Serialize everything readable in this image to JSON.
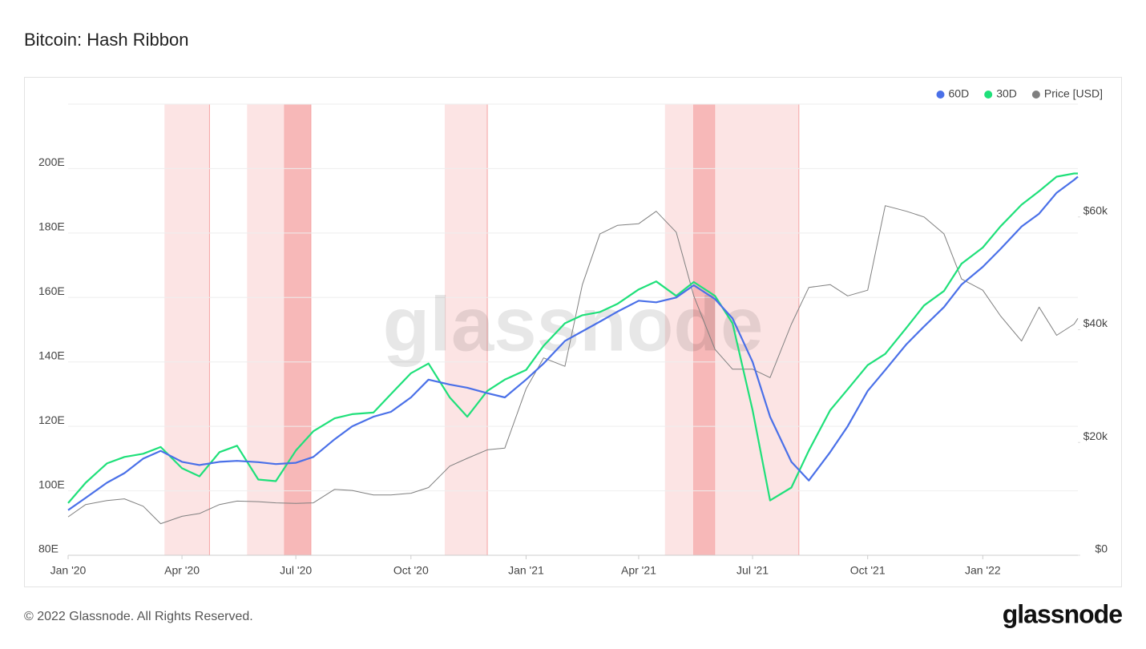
{
  "chart_data": {
    "type": "line",
    "title": "Bitcoin: Hash Ribbon",
    "watermark": "glassnode",
    "footer": "© 2022 Glassnode. All Rights Reserved.",
    "logo": "glassnode",
    "legend": "top-right",
    "grid": true,
    "xlim": [
      "2020-01-01",
      "2022-03-18"
    ],
    "xticks": [
      {
        "value": "2020-01-01",
        "label": "Jan '20"
      },
      {
        "value": "2020-04-01",
        "label": "Apr '20"
      },
      {
        "value": "2020-07-01",
        "label": "Jul '20"
      },
      {
        "value": "2020-10-01",
        "label": "Oct '20"
      },
      {
        "value": "2021-01-01",
        "label": "Jan '21"
      },
      {
        "value": "2021-04-01",
        "label": "Apr '21"
      },
      {
        "value": "2021-07-01",
        "label": "Jul '21"
      },
      {
        "value": "2021-10-01",
        "label": "Oct '21"
      },
      {
        "value": "2022-01-01",
        "label": "Jan '22"
      }
    ],
    "ylim": [
      80,
      220
    ],
    "yticks": [
      {
        "value": 80,
        "label": "80E"
      },
      {
        "value": 100,
        "label": "100E"
      },
      {
        "value": 120,
        "label": "120E"
      },
      {
        "value": 140,
        "label": "140E"
      },
      {
        "value": 160,
        "label": "160E"
      },
      {
        "value": 180,
        "label": "180E"
      },
      {
        "value": 200,
        "label": "200E"
      }
    ],
    "y2lim": [
      0,
      80000
    ],
    "y2ticks": [
      {
        "value": 0,
        "label": "$0"
      },
      {
        "value": 20000,
        "label": "$20k"
      },
      {
        "value": 40000,
        "label": "$40k"
      },
      {
        "value": 60000,
        "label": "$60k"
      }
    ],
    "bands": [
      {
        "start": "2020-03-18",
        "end": "2020-04-23",
        "color": "#fce4e4"
      },
      {
        "start": "2020-05-23",
        "end": "2020-06-22",
        "color": "#fce4e4"
      },
      {
        "start": "2020-06-22",
        "end": "2020-07-13",
        "color": "#f7b8b8"
      },
      {
        "start": "2020-10-28",
        "end": "2020-12-01",
        "color": "#fce4e4"
      },
      {
        "start": "2021-04-22",
        "end": "2021-05-15",
        "color": "#fce4e4"
      },
      {
        "start": "2021-05-15",
        "end": "2021-06-01",
        "color": "#f7b8b8"
      },
      {
        "start": "2021-06-01",
        "end": "2021-08-07",
        "color": "#fce4e4"
      }
    ],
    "x": [
      "2020-01-01",
      "2020-01-15",
      "2020-02-01",
      "2020-02-15",
      "2020-03-01",
      "2020-03-15",
      "2020-04-01",
      "2020-04-15",
      "2020-05-01",
      "2020-05-15",
      "2020-06-01",
      "2020-06-15",
      "2020-07-01",
      "2020-07-15",
      "2020-08-01",
      "2020-08-15",
      "2020-09-01",
      "2020-09-15",
      "2020-10-01",
      "2020-10-15",
      "2020-11-01",
      "2020-11-15",
      "2020-12-01",
      "2020-12-15",
      "2021-01-01",
      "2021-01-15",
      "2021-02-01",
      "2021-02-15",
      "2021-03-01",
      "2021-03-15",
      "2021-04-01",
      "2021-04-15",
      "2021-05-01",
      "2021-05-15",
      "2021-06-01",
      "2021-06-15",
      "2021-07-01",
      "2021-07-15",
      "2021-08-01",
      "2021-08-15",
      "2021-09-01",
      "2021-09-15",
      "2021-10-01",
      "2021-10-15",
      "2021-11-01",
      "2021-11-15",
      "2021-12-01",
      "2021-12-15",
      "2022-01-01",
      "2022-01-15",
      "2022-02-01",
      "2022-02-15",
      "2022-03-01",
      "2022-03-15",
      "2022-03-18"
    ],
    "series": [
      {
        "name": "Price [USD]",
        "color": "#7f7f7f",
        "axis": "y2",
        "width": 1,
        "values": [
          6800,
          9000,
          9700,
          10000,
          8700,
          5600,
          6900,
          7400,
          9000,
          9600,
          9500,
          9300,
          9200,
          9300,
          11700,
          11500,
          10700,
          10700,
          11000,
          12000,
          15800,
          17200,
          18700,
          19000,
          29500,
          35000,
          33500,
          48000,
          57000,
          58500,
          58800,
          61000,
          57300,
          46000,
          36500,
          33000,
          33000,
          31500,
          41000,
          47500,
          48000,
          46000,
          47000,
          62000,
          61000,
          60000,
          57000,
          49000,
          47000,
          42500,
          38000,
          44000,
          39000,
          41000,
          42000
        ]
      },
      {
        "name": "30D",
        "color": "#1fe07a",
        "width": 2.2,
        "values": [
          96.2,
          102.5,
          108.5,
          110.5,
          111.5,
          113.6,
          107,
          104.5,
          112,
          114,
          103.5,
          103,
          112.5,
          118.5,
          122.5,
          123.8,
          124.3,
          130,
          136.5,
          139.5,
          129,
          123,
          131,
          134.5,
          137.5,
          145,
          152,
          154.5,
          155.5,
          158,
          162.5,
          165,
          160.5,
          164.8,
          160.5,
          152,
          125,
          97,
          101,
          112.5,
          125,
          131.5,
          139,
          142.5,
          150.6,
          157.5,
          162,
          170.5,
          175.5,
          182,
          188.8,
          193,
          197.5,
          198.5,
          198.5
        ]
      },
      {
        "name": "60D",
        "color": "#4a70e8",
        "width": 2.2,
        "values": [
          94,
          97.8,
          102.5,
          105.5,
          110,
          112.4,
          109,
          108,
          109,
          109.3,
          108.9,
          108.3,
          108.7,
          110.5,
          116,
          120,
          123,
          124.5,
          129,
          134.5,
          133,
          132,
          130.3,
          129,
          134.5,
          139.5,
          146.5,
          149.5,
          152.5,
          155.6,
          159,
          158.5,
          160,
          163.8,
          159.5,
          153.5,
          140,
          123,
          109,
          103.2,
          112,
          120,
          131,
          137.5,
          145.5,
          151,
          157,
          164,
          169.5,
          175,
          182,
          186,
          192.5,
          196.5,
          197.5
        ]
      }
    ]
  }
}
